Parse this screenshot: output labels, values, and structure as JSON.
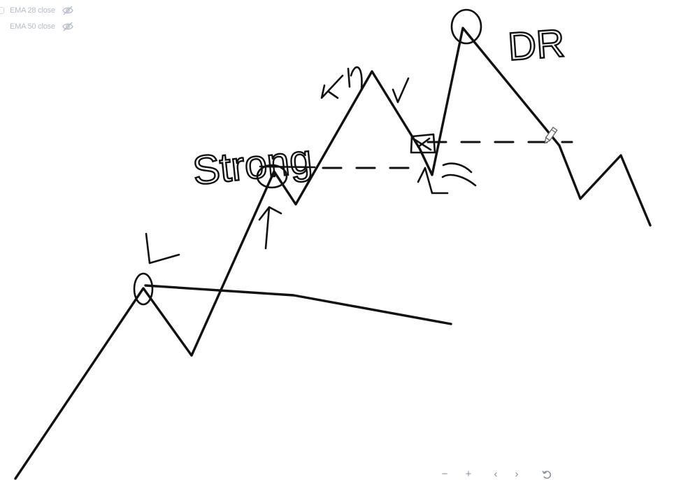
{
  "legend": {
    "items": [
      {
        "label": "EMA 28 close",
        "icon": "eye-off-icon"
      },
      {
        "label": "EMA 50 close",
        "icon": "eye-off-icon"
      }
    ]
  },
  "annotations": {
    "strong": "Strong",
    "dr": "DR"
  },
  "toolbar": {
    "zoom_out": "−",
    "zoom_in": "+",
    "scroll_left": "‹",
    "scroll_right": "›",
    "reset_icon": "reset-icon"
  },
  "colors": {
    "ink": "#111111",
    "legend_text": "#b6bcc6",
    "toolbar_text": "#8a9099",
    "background": "#ffffff"
  }
}
